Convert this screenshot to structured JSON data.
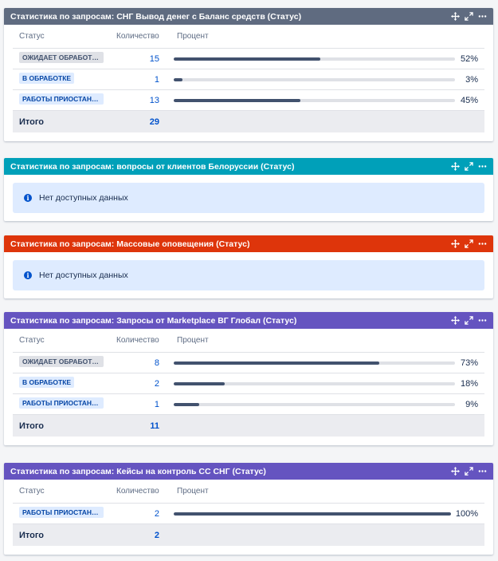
{
  "colors": {
    "slate": "#5f6b80",
    "teal": "#00a0b9",
    "red": "#de350b",
    "purple": "#6554c0"
  },
  "columns": {
    "status": "Статус",
    "count": "Количество",
    "percent": "Процент"
  },
  "total_label": "Итого",
  "no_data_text": "Нет доступных данных",
  "gadgets": [
    {
      "title": "Статистика по запросам: СНГ Вывод денег с Баланс средств (Статус)",
      "rows": [
        {
          "status": "ОЖИДАЕТ ОБРАБОТКИ",
          "count": "15",
          "percent": "52%",
          "fill": 0.52
        },
        {
          "status": "В ОБРАБОТКЕ",
          "count": "1",
          "percent": "3%",
          "fill": 0.03
        },
        {
          "status": "РАБОТЫ ПРИОСТАНОВЛЕНЫ",
          "count": "13",
          "percent": "45%",
          "fill": 0.45
        }
      ],
      "total": "29"
    },
    {
      "title": "Статистика по запросам: вопросы от клиентов Белоруссии (Статус)"
    },
    {
      "title": "Статистика по запросам: Массовые оповещения (Статус)"
    },
    {
      "title": "Статистика по запросам: Запросы от Marketplace ВГ Глобал (Статус)",
      "rows": [
        {
          "status": "ОЖИДАЕТ ОБРАБОТКИ",
          "count": "8",
          "percent": "73%",
          "fill": 0.73
        },
        {
          "status": "В ОБРАБОТКЕ",
          "count": "2",
          "percent": "18%",
          "fill": 0.18
        },
        {
          "status": "РАБОТЫ ПРИОСТАНОВЛЕНЫ",
          "count": "1",
          "percent": "9%",
          "fill": 0.09
        }
      ],
      "total": "11"
    },
    {
      "title": "Статистика по запросам: Кейсы на контроль СС СНГ (Статус)",
      "rows": [
        {
          "status": "РАБОТЫ ПРИОСТАНОВЛЕНЫ",
          "count": "2",
          "percent": "100%",
          "fill": 1.0
        }
      ],
      "total": "2"
    }
  ]
}
